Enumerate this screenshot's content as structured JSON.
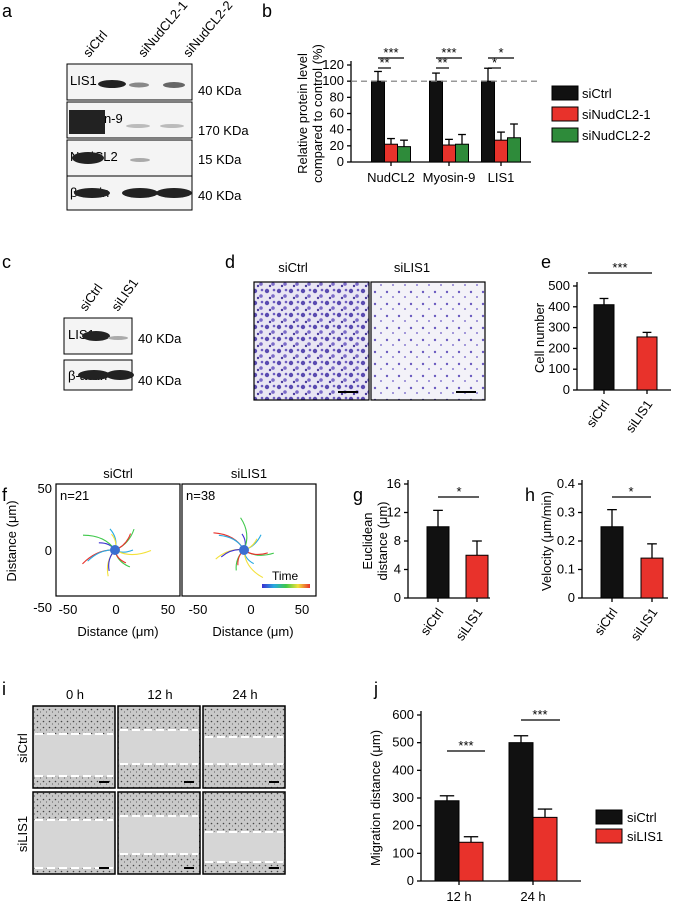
{
  "colors": {
    "black": "#111111",
    "red": "#e8322b",
    "green": "#2e8b3a",
    "dash": "#777777"
  },
  "panels": {
    "a": {
      "label": "a",
      "lanes": [
        "siCtrl",
        "siNudCL2-1",
        "siNudCL2-2"
      ],
      "blots": [
        {
          "name": "LIS1",
          "kda": "40 KDa"
        },
        {
          "name": "Myosin-9",
          "kda": "170 KDa"
        },
        {
          "name": "NudCL2",
          "kda": "15 KDa"
        },
        {
          "name": "β-actin",
          "kda": "40 KDa"
        }
      ]
    },
    "c": {
      "label": "c",
      "lanes": [
        "siCtrl",
        "siLIS1"
      ],
      "blots": [
        {
          "name": "LIS1",
          "kda": "40 KDa"
        },
        {
          "name": "β-actin",
          "kda": "40 KDa"
        }
      ]
    },
    "d": {
      "label": "d",
      "images": [
        "siCtrl",
        "siLIS1"
      ]
    },
    "f": {
      "label": "f",
      "conditions": [
        {
          "title": "siCtrl",
          "n": "n=21"
        },
        {
          "title": "siLIS1",
          "n": "n=38"
        }
      ],
      "ylabel": "Distance (μm)",
      "xlabel": "Distance (μm)",
      "ticks": [
        "-50",
        "0",
        "50"
      ],
      "colorbar_label": "Time"
    },
    "i": {
      "label": "i",
      "timepoints": [
        "0 h",
        "12 h",
        "24 h"
      ],
      "rows": [
        "siCtrl",
        "siLIS1"
      ]
    }
  },
  "chart_data": [
    {
      "id": "b",
      "label": "b",
      "type": "bar",
      "categories": [
        "NudCL2",
        "Myosin-9",
        "LIS1"
      ],
      "series": [
        {
          "name": "siCtrl",
          "values": [
            100,
            100,
            100
          ],
          "errors": [
            12,
            10,
            16
          ]
        },
        {
          "name": "siNudCL2-1",
          "values": [
            22,
            21,
            27
          ],
          "errors": [
            7,
            7,
            10
          ]
        },
        {
          "name": "siNudCL2-2",
          "values": [
            19,
            22,
            30
          ],
          "errors": [
            8,
            12,
            17
          ]
        }
      ],
      "ylabel": "Relative protein level compared to control (%)",
      "ylim": [
        0,
        120
      ],
      "yticks": [
        "0",
        "20",
        "40",
        "60",
        "80",
        "100",
        "120"
      ],
      "refline": 100,
      "significance": [
        {
          "category": "NudCL2",
          "pairs": [
            {
              "to": "siNudCL2-1",
              "text": "**"
            },
            {
              "to": "siNudCL2-2",
              "text": "***"
            }
          ]
        },
        {
          "category": "Myosin-9",
          "pairs": [
            {
              "to": "siNudCL2-1",
              "text": "**"
            },
            {
              "to": "siNudCL2-2",
              "text": "***"
            }
          ]
        },
        {
          "category": "LIS1",
          "pairs": [
            {
              "to": "siNudCL2-1",
              "text": "*"
            },
            {
              "to": "siNudCL2-2",
              "text": "*"
            }
          ]
        }
      ],
      "legend": "right"
    },
    {
      "id": "e",
      "label": "e",
      "type": "bar",
      "categories": [
        "siCtrl",
        "siLIS1"
      ],
      "values": [
        410,
        255
      ],
      "errors": [
        30,
        22
      ],
      "ylabel": "Cell number",
      "ylim": [
        0,
        500
      ],
      "yticks": [
        "0",
        "100",
        "200",
        "300",
        "400",
        "500"
      ],
      "significance": "***"
    },
    {
      "id": "g",
      "label": "g",
      "type": "bar",
      "categories": [
        "siCtrl",
        "siLIS1"
      ],
      "values": [
        10,
        6
      ],
      "errors": [
        2.3,
        2
      ],
      "ylabel": "Euclidean distance (μm)",
      "ylim": [
        0,
        16
      ],
      "yticks": [
        "0",
        "4",
        "8",
        "12",
        "16"
      ],
      "significance": "*"
    },
    {
      "id": "h",
      "label": "h",
      "type": "bar",
      "categories": [
        "siCtrl",
        "siLIS1"
      ],
      "values": [
        0.25,
        0.14
      ],
      "errors": [
        0.06,
        0.05
      ],
      "ylabel": "Velocity (μm/min)",
      "ylim": [
        0,
        0.4
      ],
      "yticks": [
        "0",
        "0.1",
        "0.2",
        "0.3",
        "0.4"
      ],
      "significance": "*"
    },
    {
      "id": "j",
      "label": "j",
      "type": "bar",
      "categories": [
        "12 h",
        "24 h"
      ],
      "series": [
        {
          "name": "siCtrl",
          "values": [
            290,
            500
          ],
          "errors": [
            18,
            25
          ]
        },
        {
          "name": "siLIS1",
          "values": [
            140,
            230
          ],
          "errors": [
            20,
            30
          ]
        }
      ],
      "ylabel": "Migration distance (μm)",
      "ylim": [
        0,
        600
      ],
      "yticks": [
        "0",
        "100",
        "200",
        "300",
        "400",
        "500",
        "600"
      ],
      "significance": [
        "***",
        "***"
      ],
      "legend": "right"
    }
  ]
}
